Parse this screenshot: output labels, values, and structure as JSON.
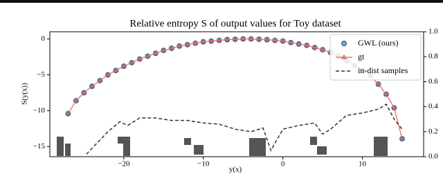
{
  "chart_data": {
    "type": "line",
    "title": "Relative entropy S of output values for Toy dataset",
    "x_label": "y(x)",
    "y_label": "S(y(x))",
    "x": [
      -27,
      -26,
      -25,
      -24,
      -23,
      -22,
      -21,
      -20,
      -19,
      -18,
      -17,
      -16,
      -15,
      -14,
      -13,
      -12,
      -11,
      -10,
      -9,
      -8,
      -7,
      -6,
      -5,
      -4,
      -3,
      -2,
      -1,
      0,
      1,
      2,
      3,
      4,
      5,
      6,
      7,
      8,
      9,
      10,
      11,
      12,
      13,
      14,
      15
    ],
    "series": [
      {
        "name": "GWL (ours)",
        "color": "#1f77b4",
        "marker": "circle",
        "values": [
          -10.4,
          -8.6,
          -7.5,
          -6.6,
          -5.8,
          -5.0,
          -4.4,
          -3.8,
          -3.3,
          -2.8,
          -2.4,
          -2.0,
          -1.6,
          -1.3,
          -1.0,
          -0.8,
          -0.6,
          -0.4,
          -0.3,
          -0.2,
          -0.1,
          -0.05,
          0,
          0,
          -0.05,
          -0.1,
          -0.2,
          -0.3,
          -0.5,
          -0.7,
          -0.9,
          -1.2,
          -1.5,
          -1.9,
          -2.4,
          -3.0,
          -3.7,
          -4.4,
          -5.1,
          -6.3,
          -7.7,
          -9.6,
          -13.9
        ]
      },
      {
        "name": "gt",
        "color": "#f07a78",
        "marker": "triangle",
        "values": [
          -10.4,
          -8.6,
          -7.5,
          -6.6,
          -5.8,
          -5.0,
          -4.4,
          -3.8,
          -3.3,
          -2.8,
          -2.4,
          -2.0,
          -1.6,
          -1.3,
          -1.0,
          -0.8,
          -0.6,
          -0.4,
          -0.3,
          -0.2,
          -0.1,
          -0.05,
          0,
          0,
          -0.05,
          -0.1,
          -0.2,
          -0.3,
          -0.5,
          -0.7,
          -0.9,
          -1.2,
          -1.5,
          -1.9,
          -2.4,
          -3.0,
          -3.7,
          -4.4,
          -5.1,
          -6.3,
          -7.7,
          -9.6,
          -13.9
        ]
      },
      {
        "name": "in-dist samples",
        "color": "#333333",
        "dash": true,
        "axis": "y2",
        "x": [
          -24.7,
          -22,
          -20.5,
          -19.5,
          -18,
          -16,
          -14,
          -12,
          -10,
          -8,
          -6,
          -4,
          -2.5,
          -1.5,
          0,
          2,
          4,
          5,
          6,
          8,
          10,
          12,
          13,
          14,
          15
        ],
        "values": [
          0.02,
          0.2,
          0.28,
          0.25,
          0.31,
          0.31,
          0.29,
          0.29,
          0.27,
          0.26,
          0.22,
          0.2,
          0.23,
          0.05,
          0.22,
          0.25,
          0.27,
          0.18,
          0.22,
          0.33,
          0.35,
          0.38,
          0.42,
          0.3,
          0.22
        ]
      }
    ],
    "xlim": [
      -29.3,
      17.7
    ],
    "xticks": [
      {
        "value": -20,
        "label": "−20"
      },
      {
        "value": -10,
        "label": "−10"
      },
      0,
      10
    ],
    "ylim": [
      -16.4,
      1.0
    ],
    "yticks": [
      {
        "value": -15,
        "label": "−15"
      },
      {
        "value": -10,
        "label": "−10"
      },
      {
        "value": -5,
        "label": "−5"
      },
      0
    ],
    "y2lim": [
      0,
      1
    ],
    "y2ticks": [
      0.0,
      0.2,
      0.4,
      0.6,
      0.8,
      1.0
    ],
    "legend": "upper right"
  }
}
